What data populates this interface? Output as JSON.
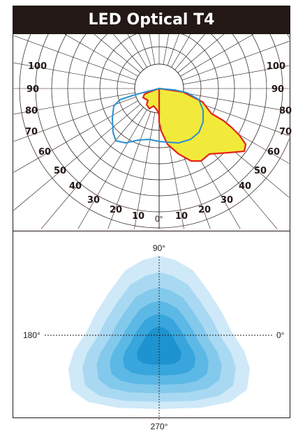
{
  "title": "LED Optical T4",
  "polar_diagram": {
    "radial_labels_left": [
      "100",
      "90",
      "80",
      "70",
      "60",
      "50",
      "40",
      "30",
      "20",
      "10"
    ],
    "radial_labels_right": [
      "100",
      "90",
      "80",
      "70",
      "60",
      "50",
      "40",
      "30",
      "20",
      "10"
    ],
    "center_label": "0°",
    "curve_colors": {
      "fill": "#f2ea3a",
      "outline_red": "#e2231a",
      "outline_blue": "#2a8fd0"
    }
  },
  "iso_diagram": {
    "label_top": "90°",
    "label_left": "180°",
    "label_right": "0°",
    "label_bottom": "270°",
    "level_colors": [
      "#cfe9f8",
      "#a9d9f2",
      "#83c9ec",
      "#5cb8e5",
      "#38a6dc",
      "#1d93d0"
    ]
  }
}
